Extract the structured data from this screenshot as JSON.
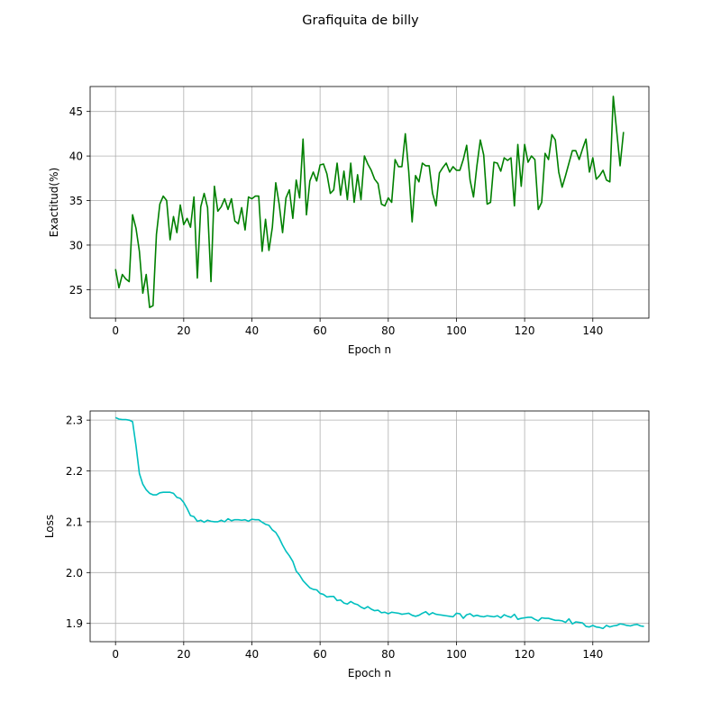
{
  "figure": {
    "suptitle": "Grafiquita de billy"
  },
  "chart_data": [
    {
      "type": "line",
      "xlabel": "Epoch n",
      "ylabel": "Exactitud(%)",
      "xlim": [
        -7.45,
        156.45
      ],
      "ylim": [
        21.8,
        47.8
      ],
      "xticks": [
        0,
        20,
        40,
        60,
        80,
        100,
        120,
        140
      ],
      "yticks": [
        25,
        30,
        35,
        40,
        45
      ],
      "grid": true,
      "color": "#008000",
      "series": [
        {
          "values": [
            27.3,
            25.2,
            26.7,
            26.2,
            25.9,
            33.4,
            31.9,
            29.3,
            24.6,
            26.7,
            23.0,
            23.2,
            31.2,
            34.6,
            35.5,
            35.0,
            30.6,
            33.2,
            31.4,
            34.5,
            32.3,
            33.0,
            32.0,
            35.4,
            26.3,
            34.3,
            35.8,
            34.2,
            25.9,
            36.6,
            33.8,
            34.3,
            35.2,
            34.0,
            35.2,
            32.7,
            32.4,
            34.2,
            31.7,
            35.4,
            35.2,
            35.5,
            35.5,
            29.3,
            32.9,
            29.4,
            32.0,
            37.0,
            34.6,
            31.4,
            35.3,
            36.2,
            33.0,
            37.3,
            35.3,
            41.9,
            33.4,
            37.2,
            38.2,
            37.2,
            39.0,
            39.1,
            38.0,
            35.8,
            36.2,
            39.2,
            35.6,
            38.3,
            35.1,
            39.2,
            34.8,
            37.9,
            35.1,
            40.0,
            39.1,
            38.4,
            37.4,
            36.9,
            34.6,
            34.4,
            35.3,
            34.8,
            39.6,
            38.8,
            38.8,
            42.5,
            38.3,
            32.6,
            37.8,
            37.1,
            39.2,
            38.9,
            38.9,
            35.8,
            34.4,
            38.1,
            38.7,
            39.2,
            38.2,
            38.8,
            38.4,
            38.4,
            39.6,
            41.2,
            37.3,
            35.4,
            38.9,
            41.8,
            40.1,
            34.6,
            34.8,
            39.3,
            39.2,
            38.3,
            39.8,
            39.5,
            39.8,
            34.4,
            41.3,
            36.6,
            41.3,
            39.3,
            40.0,
            39.6,
            34.0,
            34.8,
            40.3,
            39.6,
            42.4,
            41.8,
            38.2,
            36.5,
            37.8,
            39.2,
            40.6,
            40.6,
            39.6,
            40.8,
            41.9,
            38.2,
            39.8,
            37.4,
            37.8,
            38.4,
            37.3,
            37.1,
            46.7,
            42.8,
            38.9,
            42.7
          ]
        }
      ]
    },
    {
      "type": "line",
      "xlabel": "Epoch n",
      "ylabel": "Loss",
      "xlim": [
        -7.45,
        156.45
      ],
      "ylim": [
        1.864,
        2.318
      ],
      "xticks": [
        0,
        20,
        40,
        60,
        80,
        100,
        120,
        140
      ],
      "yticks": [
        1.9,
        2.0,
        2.1,
        2.2,
        2.3
      ],
      "ytick_labels": [
        "1.9",
        "2.0",
        "2.1",
        "2.2",
        "2.3"
      ],
      "grid": true,
      "color": "#00BFBF",
      "series": [
        {
          "values": [
            2.305,
            2.302,
            2.301,
            2.301,
            2.3,
            2.297,
            2.25,
            2.195,
            2.174,
            2.163,
            2.156,
            2.153,
            2.153,
            2.157,
            2.158,
            2.158,
            2.158,
            2.156,
            2.148,
            2.146,
            2.138,
            2.126,
            2.112,
            2.11,
            2.101,
            2.103,
            2.099,
            2.103,
            2.101,
            2.1,
            2.1,
            2.103,
            2.1,
            2.106,
            2.102,
            2.104,
            2.104,
            2.103,
            2.104,
            2.101,
            2.105,
            2.104,
            2.104,
            2.099,
            2.095,
            2.093,
            2.084,
            2.079,
            2.068,
            2.054,
            2.042,
            2.033,
            2.022,
            2.003,
            1.995,
            1.984,
            1.977,
            1.97,
            1.967,
            1.966,
            1.959,
            1.957,
            1.952,
            1.953,
            1.953,
            1.945,
            1.946,
            1.94,
            1.938,
            1.943,
            1.939,
            1.937,
            1.932,
            1.929,
            1.933,
            1.928,
            1.925,
            1.926,
            1.921,
            1.922,
            1.919,
            1.922,
            1.921,
            1.92,
            1.918,
            1.919,
            1.92,
            1.916,
            1.914,
            1.916,
            1.92,
            1.923,
            1.917,
            1.921,
            1.918,
            1.917,
            1.916,
            1.915,
            1.914,
            1.913,
            1.92,
            1.919,
            1.91,
            1.917,
            1.919,
            1.914,
            1.916,
            1.914,
            1.913,
            1.915,
            1.914,
            1.913,
            1.915,
            1.911,
            1.917,
            1.914,
            1.912,
            1.918,
            1.908,
            1.91,
            1.911,
            1.912,
            1.912,
            1.908,
            1.905,
            1.911,
            1.91,
            1.91,
            1.908,
            1.906,
            1.906,
            1.905,
            1.902,
            1.909,
            1.899,
            1.903,
            1.902,
            1.901,
            1.894,
            1.893,
            1.896,
            1.893,
            1.892,
            1.89,
            1.896,
            1.893,
            1.895,
            1.896,
            1.899,
            1.898,
            1.896,
            1.895,
            1.897,
            1.898,
            1.895,
            1.894
          ]
        }
      ]
    }
  ]
}
